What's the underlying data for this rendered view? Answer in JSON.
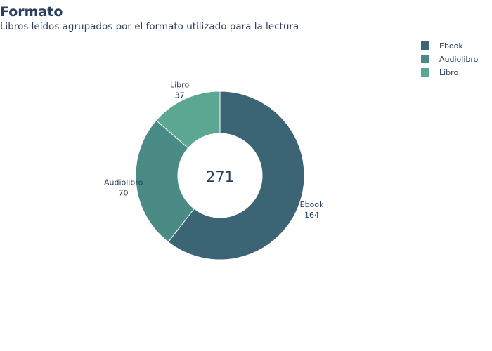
{
  "chart_data": {
    "type": "pie",
    "title": "Formato",
    "subtitle": "Libros leídos agrupados por el formato utilizado para la lectura",
    "hole": true,
    "total": "271",
    "categories": [
      "Ebook",
      "Audiolibro",
      "Libro"
    ],
    "values": [
      164,
      70,
      37
    ],
    "colors": [
      "#3b6474",
      "#4a8b85",
      "#5ba792"
    ],
    "legend_position": "top-right",
    "grid": false
  }
}
